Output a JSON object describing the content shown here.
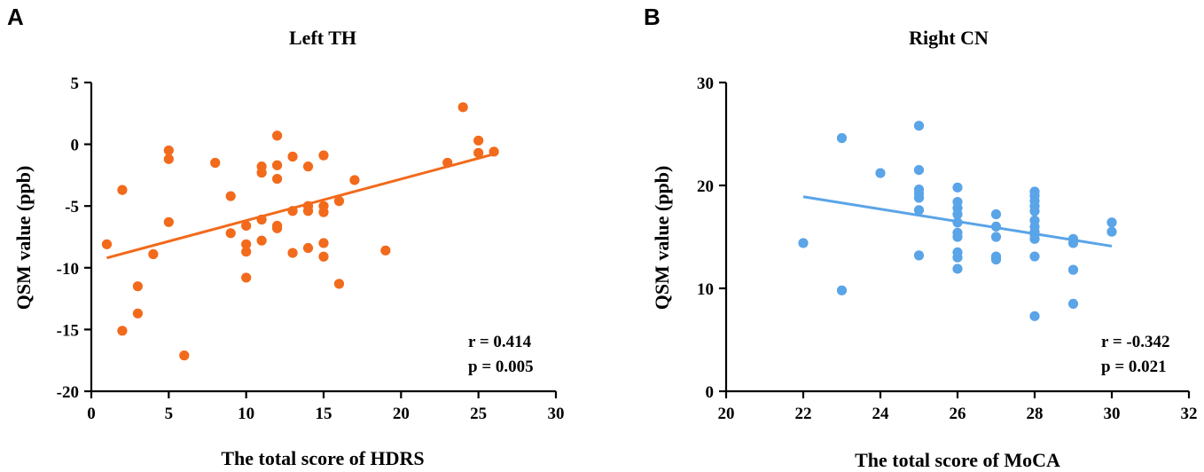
{
  "chart_data": [
    {
      "type": "scatter",
      "panel": "A",
      "title": "Left TH",
      "xlabel": "The total score of HDRS",
      "ylabel": "QSM value (ppb)",
      "xlim": [
        0,
        30
      ],
      "ylim": [
        -20,
        5
      ],
      "xticks": [
        0,
        5,
        10,
        15,
        20,
        25,
        30
      ],
      "yticks": [
        5,
        0,
        -5,
        -10,
        -15,
        -20
      ],
      "color": "#f26a1b",
      "points": [
        {
          "x": 1,
          "y": -8.1
        },
        {
          "x": 2,
          "y": -3.7
        },
        {
          "x": 2,
          "y": -15.1
        },
        {
          "x": 3,
          "y": -11.5
        },
        {
          "x": 3,
          "y": -13.7
        },
        {
          "x": 4,
          "y": -8.9
        },
        {
          "x": 5,
          "y": -0.5
        },
        {
          "x": 5,
          "y": -1.2
        },
        {
          "x": 5,
          "y": -6.3
        },
        {
          "x": 6,
          "y": -17.1
        },
        {
          "x": 8,
          "y": -1.5
        },
        {
          "x": 9,
          "y": -4.2
        },
        {
          "x": 9,
          "y": -7.2
        },
        {
          "x": 10,
          "y": -6.6
        },
        {
          "x": 10,
          "y": -8.1
        },
        {
          "x": 10,
          "y": -8.7
        },
        {
          "x": 10,
          "y": -10.8
        },
        {
          "x": 11,
          "y": -1.8
        },
        {
          "x": 11,
          "y": -2.3
        },
        {
          "x": 11,
          "y": -6.1
        },
        {
          "x": 11,
          "y": -7.8
        },
        {
          "x": 12,
          "y": 0.7
        },
        {
          "x": 12,
          "y": -1.7
        },
        {
          "x": 12,
          "y": -2.8
        },
        {
          "x": 12,
          "y": -6.6
        },
        {
          "x": 12,
          "y": -6.8
        },
        {
          "x": 13,
          "y": -1.0
        },
        {
          "x": 13,
          "y": -5.4
        },
        {
          "x": 13,
          "y": -8.8
        },
        {
          "x": 14,
          "y": -1.8
        },
        {
          "x": 14,
          "y": -5.0
        },
        {
          "x": 14,
          "y": -5.4
        },
        {
          "x": 14,
          "y": -8.4
        },
        {
          "x": 15,
          "y": -0.9
        },
        {
          "x": 15,
          "y": -5.0
        },
        {
          "x": 15,
          "y": -5.5
        },
        {
          "x": 15,
          "y": -8.0
        },
        {
          "x": 15,
          "y": -9.1
        },
        {
          "x": 16,
          "y": -4.6
        },
        {
          "x": 16,
          "y": -11.3
        },
        {
          "x": 17,
          "y": -2.9
        },
        {
          "x": 19,
          "y": -8.6
        },
        {
          "x": 23,
          "y": -1.5
        },
        {
          "x": 24,
          "y": 3.0
        },
        {
          "x": 25,
          "y": 0.3
        },
        {
          "x": 25,
          "y": -0.7
        },
        {
          "x": 26,
          "y": -0.6
        }
      ],
      "fit_line": {
        "x": [
          1,
          26
        ],
        "y": [
          -9.2,
          -0.8
        ]
      },
      "r": "r = 0.414",
      "p": "p = 0.005"
    },
    {
      "type": "scatter",
      "panel": "B",
      "title": "Right CN",
      "xlabel": "The total score of MoCA",
      "ylabel": "QSM value (ppb)",
      "xlim": [
        20,
        32
      ],
      "ylim": [
        0,
        30
      ],
      "xticks": [
        20,
        22,
        24,
        26,
        28,
        30,
        32
      ],
      "yticks": [
        30,
        20,
        10,
        0
      ],
      "color": "#5aa4e8",
      "points": [
        {
          "x": 22,
          "y": 14.4
        },
        {
          "x": 23,
          "y": 24.6
        },
        {
          "x": 23,
          "y": 9.8
        },
        {
          "x": 24,
          "y": 21.2
        },
        {
          "x": 25,
          "y": 25.8
        },
        {
          "x": 25,
          "y": 21.5
        },
        {
          "x": 25,
          "y": 19.6
        },
        {
          "x": 25,
          "y": 19.2
        },
        {
          "x": 25,
          "y": 18.8
        },
        {
          "x": 25,
          "y": 17.6
        },
        {
          "x": 25,
          "y": 13.2
        },
        {
          "x": 26,
          "y": 19.8
        },
        {
          "x": 26,
          "y": 18.4
        },
        {
          "x": 26,
          "y": 17.8
        },
        {
          "x": 26,
          "y": 17.2
        },
        {
          "x": 26,
          "y": 16.4
        },
        {
          "x": 26,
          "y": 15.4
        },
        {
          "x": 26,
          "y": 15.0
        },
        {
          "x": 26,
          "y": 13.5
        },
        {
          "x": 26,
          "y": 13.0
        },
        {
          "x": 26,
          "y": 11.9
        },
        {
          "x": 27,
          "y": 17.2
        },
        {
          "x": 27,
          "y": 16.0
        },
        {
          "x": 27,
          "y": 15.0
        },
        {
          "x": 27,
          "y": 13.1
        },
        {
          "x": 27,
          "y": 12.8
        },
        {
          "x": 28,
          "y": 19.4
        },
        {
          "x": 28,
          "y": 19.0
        },
        {
          "x": 28,
          "y": 18.5
        },
        {
          "x": 28,
          "y": 18.0
        },
        {
          "x": 28,
          "y": 17.5
        },
        {
          "x": 28,
          "y": 16.6
        },
        {
          "x": 28,
          "y": 16.0
        },
        {
          "x": 28,
          "y": 15.5
        },
        {
          "x": 28,
          "y": 15.2
        },
        {
          "x": 28,
          "y": 14.8
        },
        {
          "x": 28,
          "y": 13.1
        },
        {
          "x": 28,
          "y": 7.3
        },
        {
          "x": 29,
          "y": 14.8
        },
        {
          "x": 29,
          "y": 14.4
        },
        {
          "x": 29,
          "y": 11.8
        },
        {
          "x": 29,
          "y": 8.5
        },
        {
          "x": 30,
          "y": 16.4
        },
        {
          "x": 30,
          "y": 15.5
        }
      ],
      "fit_line": {
        "x": [
          22,
          30
        ],
        "y": [
          18.9,
          14.1
        ]
      },
      "r": "r = -0.342",
      "p": "p = 0.021"
    }
  ]
}
